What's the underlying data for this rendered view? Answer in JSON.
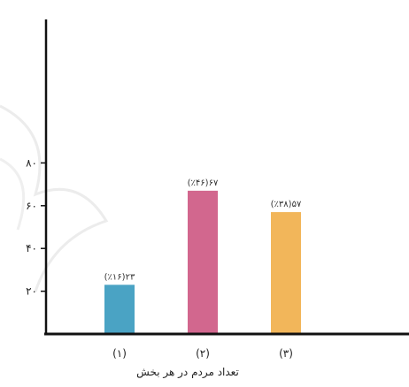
{
  "chart_data": {
    "type": "bar",
    "title": "",
    "xlabel": "تعداد مردم در هر بخش",
    "ylabel": "",
    "categories": [
      "(۱)",
      "(۲)",
      "(۳)"
    ],
    "values": [
      23,
      67,
      57
    ],
    "value_labels": [
      "(٪۱۶)۲۳",
      "(٪۴۶)۶۷",
      "(٪۳۸)۵۷"
    ],
    "bar_colors": [
      "#4aa3c4",
      "#d2678e",
      "#f2b65a"
    ],
    "y_ticks": [
      20,
      40,
      60,
      80
    ],
    "y_tick_labels": [
      "۲۰",
      "۴۰",
      "۶۰",
      "۸۰"
    ],
    "ylim": [
      0,
      100
    ],
    "grid": false,
    "legend": "none"
  }
}
